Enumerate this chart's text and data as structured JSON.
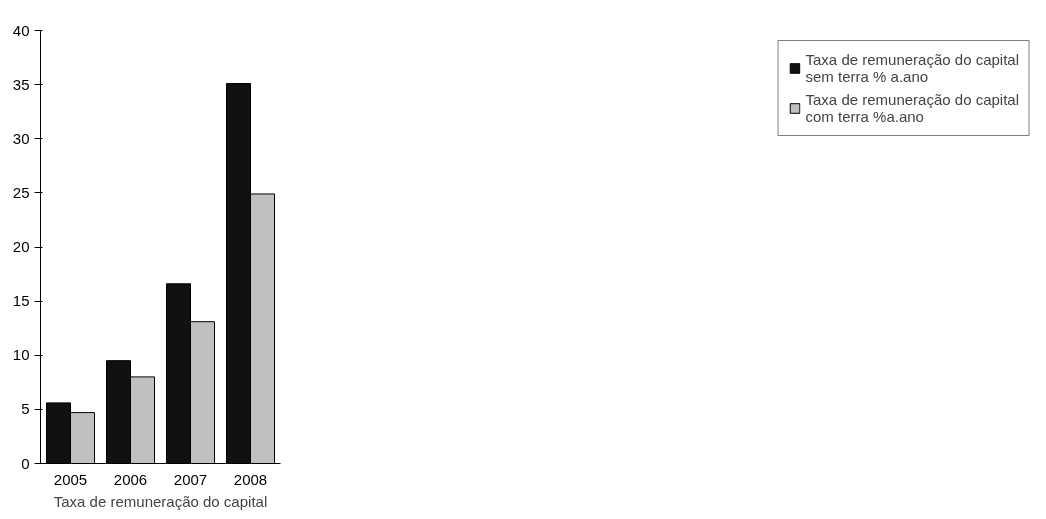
{
  "chart_data": {
    "type": "bar",
    "xlabel": "Taxa de remuneração do capital",
    "categories": [
      "2005",
      "2006",
      "2007",
      "2008"
    ],
    "series": [
      {
        "name": "Taxa de remuneração do capital sem terra % a.ano",
        "color": "#111111",
        "values": [
          5.6,
          9.5,
          16.6,
          35.1
        ]
      },
      {
        "name": "Taxa de remuneração do capital com terra %a.ano",
        "color": "#c0c0c0",
        "values": [
          4.7,
          8.0,
          13.1,
          24.9
        ]
      }
    ],
    "ylim": [
      0,
      40
    ],
    "yticks": [
      0,
      5,
      10,
      15,
      20,
      25,
      30,
      35,
      40
    ],
    "grid": false,
    "legend": "right"
  }
}
